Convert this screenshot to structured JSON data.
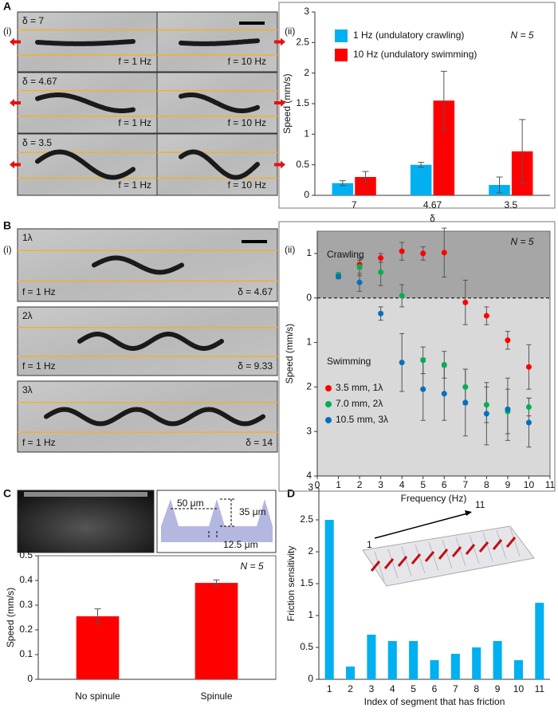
{
  "panel_labels": [
    "A",
    "B",
    "C",
    "D"
  ],
  "sub_labels": [
    "(i)",
    "(ii)"
  ],
  "panel_a_images": [
    {
      "delta": "δ = 7",
      "left": "f = 1 Hz",
      "right": "f = 10 Hz"
    },
    {
      "delta": "δ = 4.67",
      "left": "f = 1 Hz",
      "right": "f = 10 Hz"
    },
    {
      "delta": "δ = 3.5",
      "left": "f = 1 Hz",
      "right": "f = 10 Hz"
    }
  ],
  "panel_b_images": [
    {
      "mode": "1λ",
      "freq": "f = 1 Hz",
      "delta": "δ = 4.67"
    },
    {
      "mode": "2λ",
      "freq": "f = 1 Hz",
      "delta": "δ = 9.33"
    },
    {
      "mode": "3λ",
      "freq": "f = 1 Hz",
      "delta": "δ = 14"
    }
  ],
  "panel_c_diagram": {
    "pitch": "50 μm",
    "height": "35 μm",
    "width": "12.5 μm"
  },
  "panel_d_inset": {
    "start": "1",
    "end": "11"
  },
  "chart_data": [
    {
      "type": "bar",
      "categories": [
        "7",
        "4.67",
        "3.5"
      ],
      "series": [
        {
          "name": "1 Hz (undulatory crawling)",
          "color": "#00b0f0",
          "values": [
            0.2,
            0.5,
            0.17
          ],
          "errors": [
            0.04,
            0.04,
            0.13
          ]
        },
        {
          "name": "10 Hz (undulatory swimming)",
          "color": "#ff0000",
          "values": [
            0.3,
            1.55,
            0.72
          ],
          "errors": [
            0.09,
            0.48,
            0.52
          ]
        }
      ],
      "x_label": "δ",
      "y_label": "Speed (mm/s)",
      "annotation": "N = 5",
      "legend": "upper-left",
      "ylim": [
        0,
        3
      ],
      "yticks": [
        0,
        0.5,
        1,
        1.5,
        2,
        2.5,
        3
      ]
    },
    {
      "type": "scatter",
      "x": [
        1,
        2,
        3,
        4,
        5,
        6,
        7,
        8,
        9,
        10
      ],
      "series": [
        {
          "name": "3.5 mm, 1λ",
          "color": "#ff0000",
          "values": [
            0.5,
            0.75,
            0.9,
            1.05,
            1.0,
            1.02,
            -0.1,
            -0.4,
            -0.95,
            -1.55
          ],
          "errors": [
            0.05,
            0.1,
            0.1,
            0.2,
            0.15,
            0.55,
            0.5,
            0.2,
            0.2,
            0.5
          ]
        },
        {
          "name": "7.0 mm, 2λ",
          "color": "#00b050",
          "values": [
            0.52,
            0.7,
            0.58,
            0.05,
            -1.4,
            -1.5,
            -2.0,
            -2.4,
            -2.55,
            -2.45
          ],
          "errors": [
            0.05,
            0.2,
            0.3,
            0.25,
            0.3,
            0.3,
            0.4,
            0.4,
            0.5,
            0.2
          ]
        },
        {
          "name": "10.5 mm, 3λ",
          "color": "#0070c0",
          "values": [
            0.48,
            0.35,
            -0.35,
            -1.45,
            -2.05,
            -2.15,
            -2.35,
            -2.6,
            -2.5,
            -2.8
          ],
          "errors": [
            0.05,
            0.2,
            0.15,
            0.65,
            0.7,
            0.6,
            0.75,
            0.7,
            0.7,
            0.55
          ]
        }
      ],
      "regions": [
        "Crawling",
        "Swimming"
      ],
      "x_label": "Frequency (Hz)",
      "y_label": "Speed (mm/s)",
      "annotation": "N = 5",
      "legend": "lower-left",
      "xlim": [
        0,
        11
      ],
      "xticks": [
        0,
        1,
        2,
        3,
        4,
        5,
        6,
        7,
        8,
        9,
        10,
        11
      ],
      "ylim": [
        -4,
        1.5
      ],
      "yticks": [
        1,
        0,
        {
          "value": -1,
          "label": "1"
        },
        {
          "value": -2,
          "label": "2"
        },
        {
          "value": -3,
          "label": "3"
        },
        {
          "value": -4,
          "label": "4"
        }
      ]
    },
    {
      "type": "bar",
      "categories": [
        "No spinule",
        "Spinule"
      ],
      "values": [
        0.255,
        0.39
      ],
      "errors": [
        0.03,
        0.012
      ],
      "color": "#ff0000",
      "y_label": "Speed (mm/s)",
      "annotation": "N = 5",
      "ylim": [
        0,
        0.5
      ],
      "yticks": [
        0,
        0.1,
        0.2,
        0.3,
        0.4,
        0.5
      ]
    },
    {
      "type": "bar",
      "categories": [
        "1",
        "2",
        "3",
        "4",
        "5",
        "6",
        "7",
        "8",
        "9",
        "10",
        "11"
      ],
      "values": [
        2.5,
        0.2,
        0.7,
        0.6,
        0.6,
        0.3,
        0.4,
        0.5,
        0.6,
        0.3,
        1.2
      ],
      "color": "#00b0f0",
      "x_label": "Index of segment that has friction",
      "y_label": "Friction sensitivity",
      "ylim": [
        0,
        3
      ],
      "yticks": [
        0,
        0.5,
        1,
        1.5,
        2,
        2.5,
        3
      ]
    }
  ]
}
